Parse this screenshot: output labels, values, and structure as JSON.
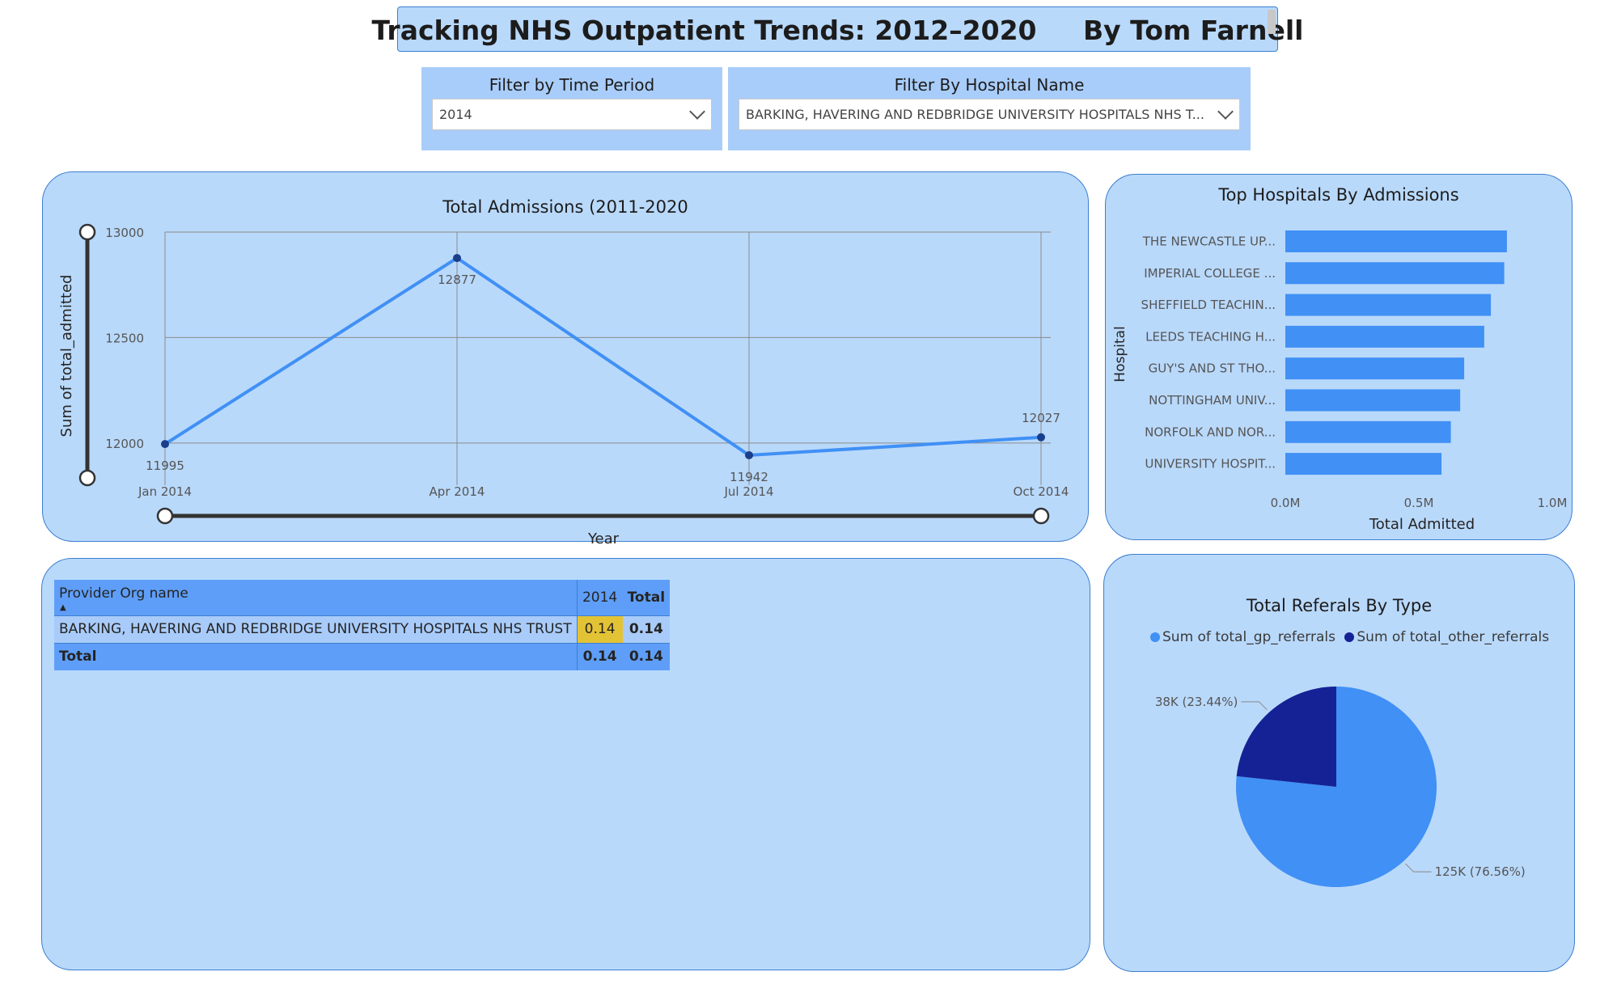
{
  "header": {
    "title": "Tracking NHS Outpatient Trends: 2012–2020",
    "author": "By Tom Farnell"
  },
  "filters": {
    "time_period": {
      "label": "Filter by Time Period",
      "value": "2014"
    },
    "hospital": {
      "label": "Filter By Hospital Name",
      "value": "BARKING, HAVERING AND REDBRIDGE UNIVERSITY HOSPITALS NHS T..."
    }
  },
  "line_panel": {
    "title": "Total Admissions (2011-2020",
    "ylabel": "Sum of total_admitted",
    "xlabel": "Year"
  },
  "bar_panel": {
    "title": "Top Hospitals By Admissions",
    "ylabel": "Hospital",
    "xlabel": "Total Admitted"
  },
  "table": {
    "headers": [
      "Provider Org name",
      "2014",
      "Total"
    ],
    "rows": [
      [
        "BARKING, HAVERING AND REDBRIDGE UNIVERSITY HOSPITALS NHS TRUST",
        "0.14",
        "0.14"
      ]
    ],
    "total_row": [
      "Total",
      "0.14",
      "0.14"
    ]
  },
  "pie_panel": {
    "title": "Total Referals By Type",
    "legend": [
      "Sum of total_gp_referrals",
      "Sum of total_other_referrals"
    ]
  },
  "colors": {
    "accent": "#4090f5",
    "dark_series": "#152295",
    "panel_bg": "#b9d9fb",
    "highlight_cell": "#e3c336"
  },
  "chart_data": [
    {
      "type": "line",
      "title": "Total Admissions (2011-2020",
      "xlabel": "Year",
      "ylabel": "Sum of total_admitted",
      "x": [
        "Jan 2014",
        "Apr 2014",
        "Jul 2014",
        "Oct 2014"
      ],
      "series": [
        {
          "values": [
            11995,
            12877,
            11942,
            12027
          ]
        }
      ],
      "ylim": [
        11800,
        13000
      ],
      "yticks": [
        "12000",
        "12500",
        "13000"
      ],
      "ytick_values": [
        12000,
        12500,
        13000
      ],
      "data_labels": [
        "11995",
        "12877",
        "11942",
        "12027"
      ],
      "grid": true
    },
    {
      "type": "bar",
      "orientation": "horizontal",
      "title": "Top Hospitals By Admissions",
      "xlabel": "Total Admitted",
      "ylabel": "Hospital",
      "categories": [
        "THE NEWCASTLE UP...",
        "IMPERIAL COLLEGE ...",
        "SHEFFIELD TEACHIN...",
        "LEEDS TEACHING H...",
        "GUY'S AND ST THO...",
        "NOTTINGHAM UNIV...",
        "NORFOLK AND NOR...",
        "UNIVERSITY HOSPIT..."
      ],
      "values": [
        830000,
        820000,
        770000,
        745000,
        670000,
        655000,
        620000,
        585000
      ],
      "xlim": [
        0,
        1000000
      ],
      "xticks": [
        "0.0M",
        "0.5M",
        "1.0M"
      ],
      "xtick_values": [
        0,
        500000,
        1000000
      ]
    },
    {
      "type": "pie",
      "title": "Total Referals By Type",
      "legend": "top",
      "slices": [
        {
          "name": "Sum of total_gp_referrals",
          "value": 125000,
          "label": "125K (76.56%)",
          "percent": 76.56
        },
        {
          "name": "Sum of total_other_referrals",
          "value": 38000,
          "label": "38K (23.44%)",
          "percent": 23.44
        }
      ]
    }
  ]
}
